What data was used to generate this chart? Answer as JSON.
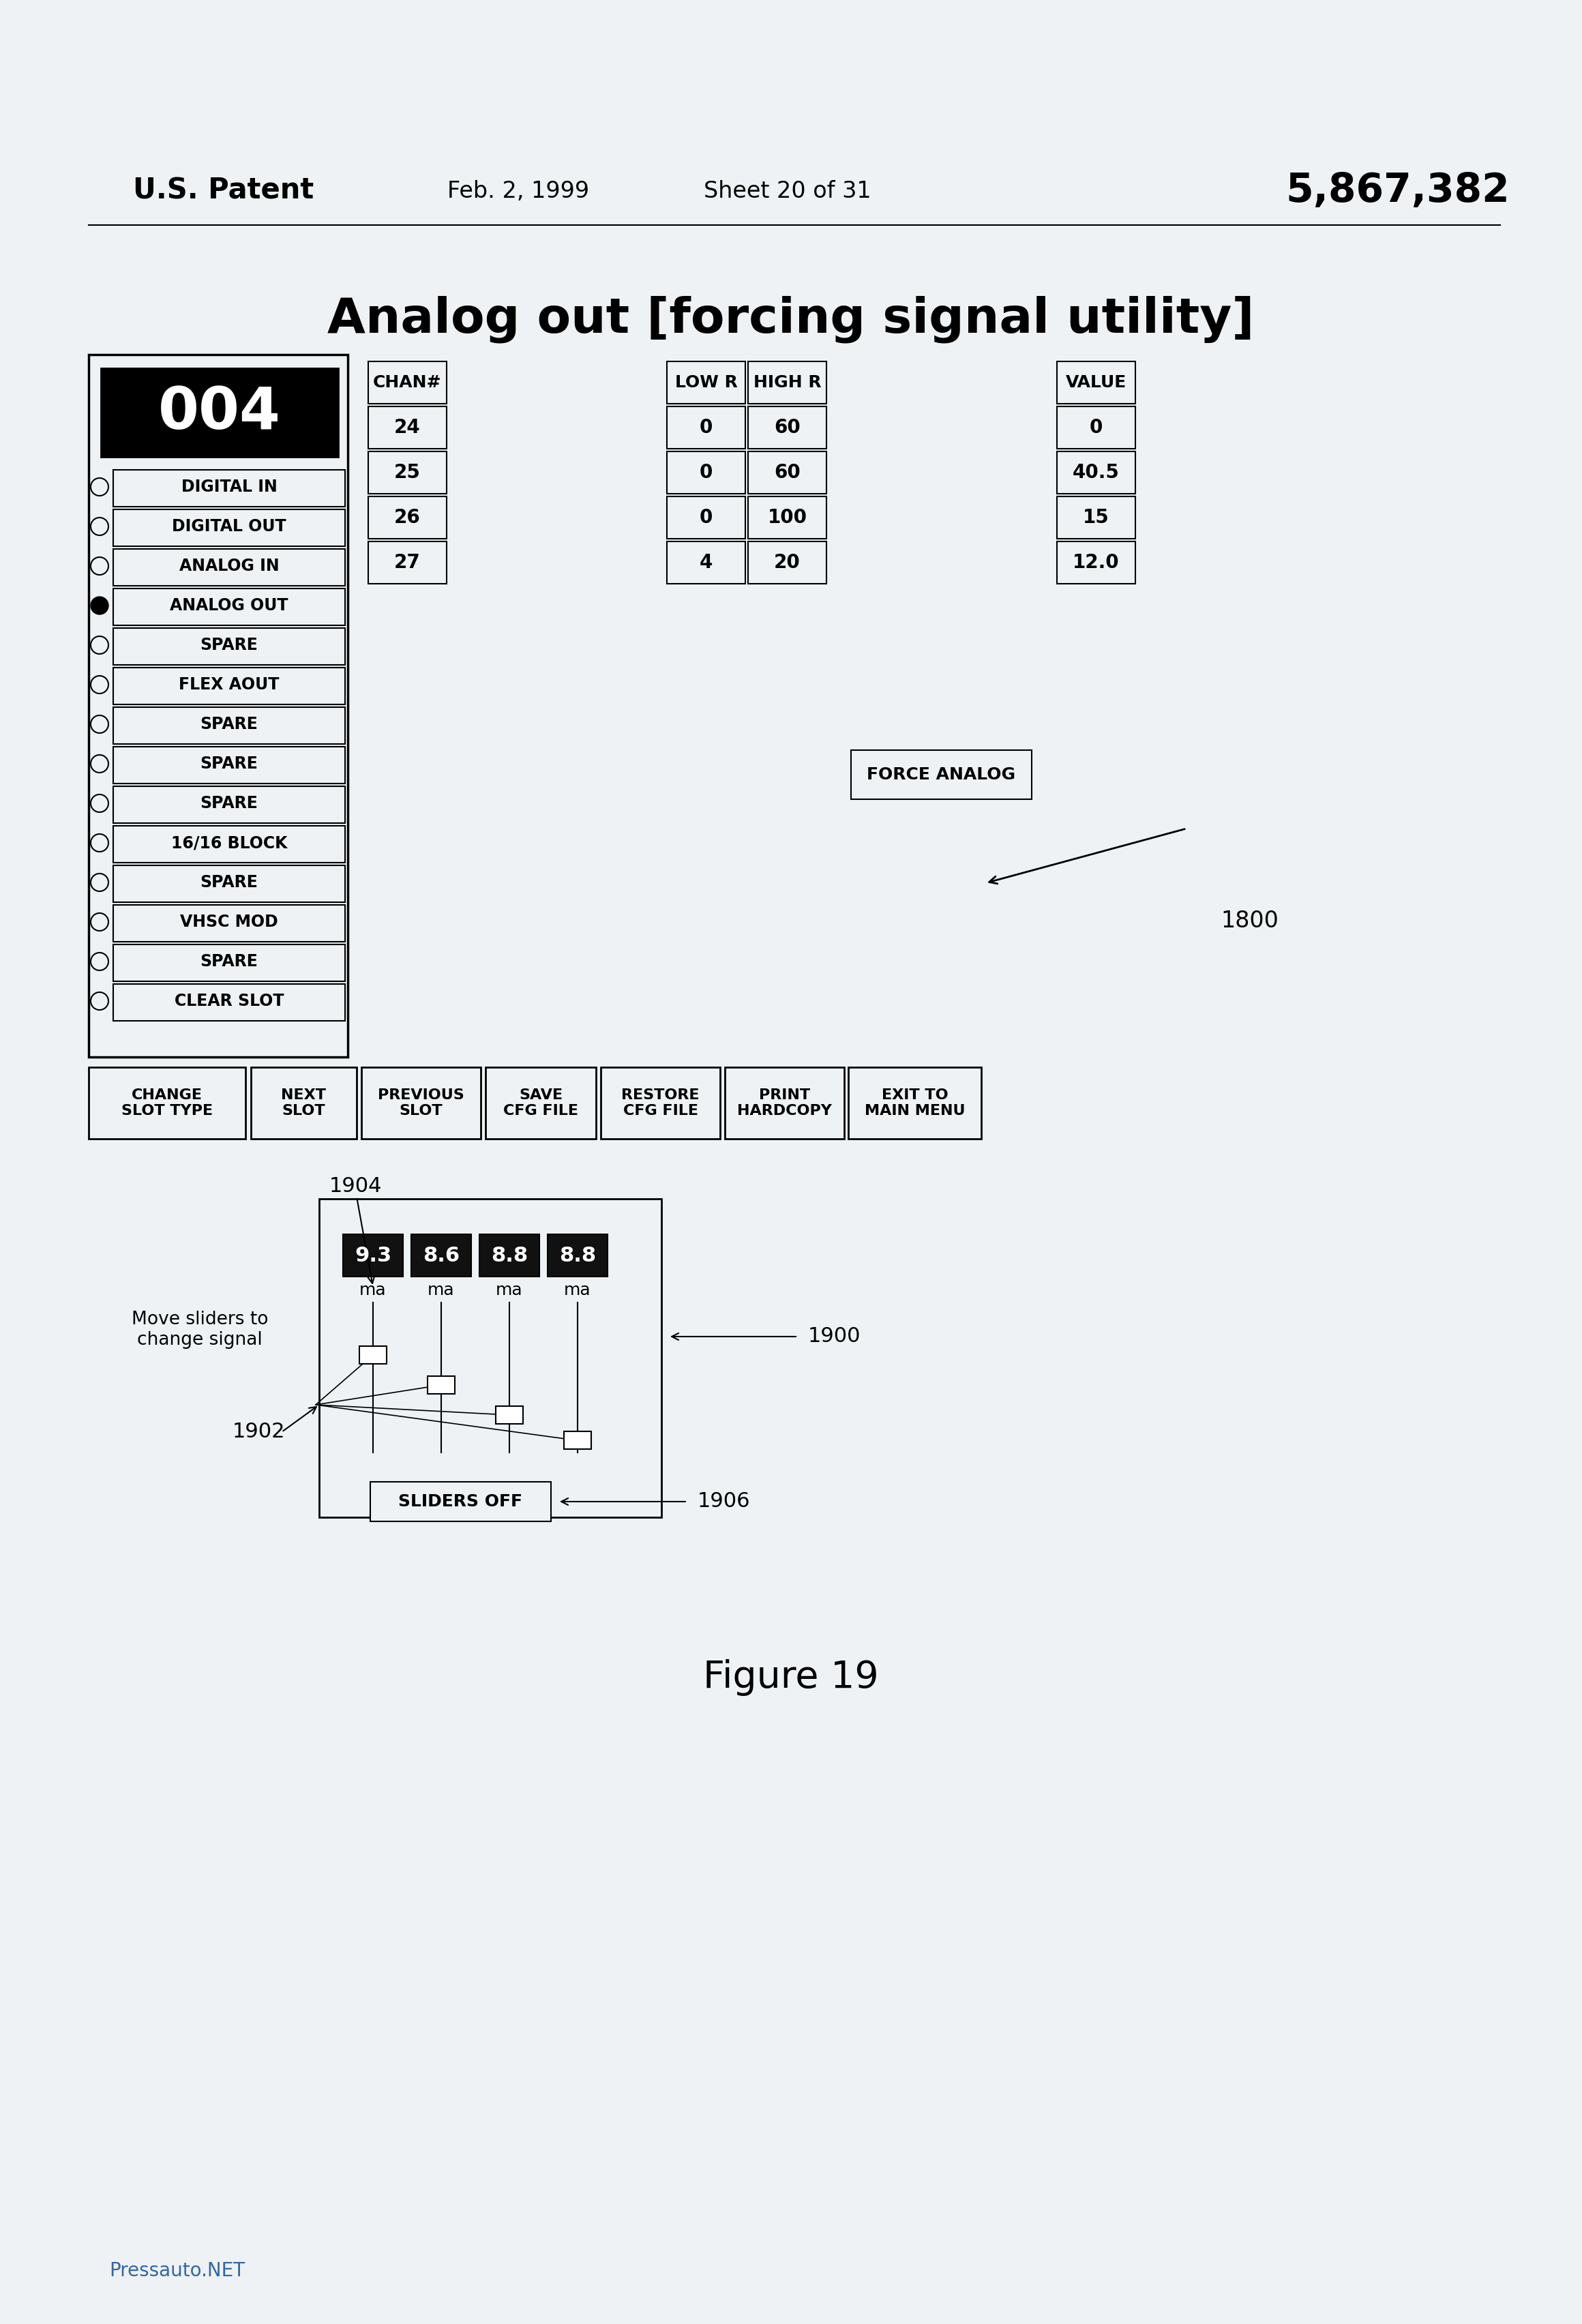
{
  "bg_color": "#eef2f4",
  "patent_line": {
    "left": "U.S. Patent",
    "center_left": "Feb. 2, 1999",
    "center_right": "Sheet 20 of 31",
    "right": "5,867,382"
  },
  "title": "Analog out [forcing signal utility]",
  "figure_caption": "Figure 19",
  "watermark": "Pressauto.NET",
  "chan_header": "CHAN#",
  "chan_values": [
    "24",
    "25",
    "26",
    "27"
  ],
  "low_r_header": "LOW R",
  "high_r_header": "HIGH R",
  "value_header": "VALUE",
  "table_data": [
    {
      "chan": "24",
      "low": "0",
      "high": "60",
      "value": "0"
    },
    {
      "chan": "25",
      "low": "0",
      "high": "60",
      "value": "40.5"
    },
    {
      "chan": "26",
      "low": "0",
      "high": "100",
      "value": "15"
    },
    {
      "chan": "27",
      "low": "4",
      "high": "20",
      "value": "12.0"
    }
  ],
  "slot_label": "004",
  "menu_items": [
    {
      "label": "DIGITAL IN",
      "selected": false
    },
    {
      "label": "DIGITAL OUT",
      "selected": false
    },
    {
      "label": "ANALOG IN",
      "selected": false
    },
    {
      "label": "ANALOG OUT",
      "selected": true
    },
    {
      "label": "SPARE",
      "selected": false
    },
    {
      "label": "FLEX AOUT",
      "selected": false
    },
    {
      "label": "SPARE",
      "selected": false
    },
    {
      "label": "SPARE",
      "selected": false
    },
    {
      "label": "SPARE",
      "selected": false
    },
    {
      "label": "16/16 BLOCK",
      "selected": false
    },
    {
      "label": "SPARE",
      "selected": false
    },
    {
      "label": "VHSC MOD",
      "selected": false
    },
    {
      "label": "SPARE",
      "selected": false
    },
    {
      "label": "CLEAR SLOT",
      "selected": false
    }
  ],
  "bottom_buttons": [
    "CHANGE\nSLOT TYPE",
    "NEXT\nSLOT",
    "PREVIOUS\nSLOT",
    "SAVE\nCFG FILE",
    "RESTORE\nCFG FILE",
    "PRINT\nHARDCOPY",
    "EXIT TO\nMAIN MENU"
  ],
  "force_analog_label": "FORCE ANALOG",
  "arrow_1800_label": "1800",
  "slider_box": {
    "values": [
      "9.3",
      "8.6",
      "8.8",
      "8.8"
    ],
    "units": [
      "ma",
      "ma",
      "ma",
      "ma"
    ],
    "label_1904": "1904",
    "label_1902": "1902",
    "label_1900": "1900",
    "label_1906": "1906",
    "slider_off_label": "SLIDERS OFF",
    "move_text": "Move sliders to\nchange signal"
  }
}
